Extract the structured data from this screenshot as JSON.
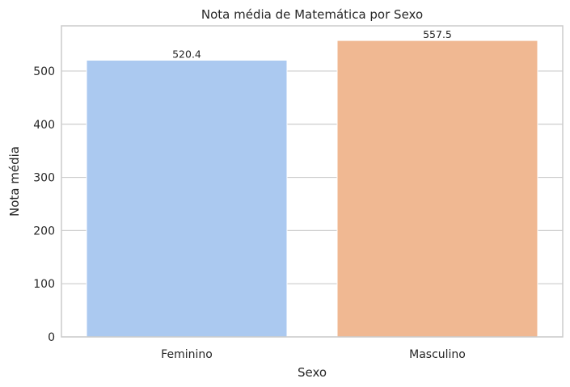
{
  "chart_data": {
    "type": "bar",
    "title": "Nota média de Matemática por Sexo",
    "xlabel": "Sexo",
    "ylabel": "Nota média",
    "categories": [
      "Feminino",
      "Masculino"
    ],
    "values": [
      520.4,
      557.5
    ],
    "value_labels": [
      "520.4",
      "557.5"
    ],
    "colors": [
      "#abc9f0",
      "#f0b892"
    ],
    "ylim": [
      0,
      585
    ],
    "yticks": [
      0,
      100,
      200,
      300,
      400,
      500
    ],
    "grid": true,
    "legend": "none"
  }
}
